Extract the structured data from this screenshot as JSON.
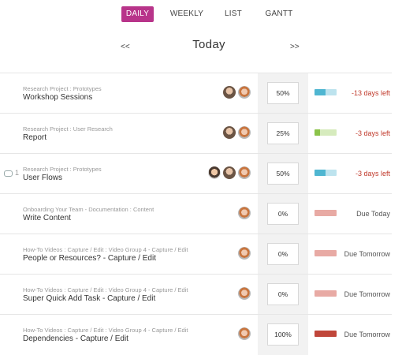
{
  "tabs": [
    {
      "label": "DAILY",
      "active": true
    },
    {
      "label": "WEEKLY",
      "active": false
    },
    {
      "label": "LIST",
      "active": false
    },
    {
      "label": "GANTT",
      "active": false
    }
  ],
  "nav": {
    "prev": "<<",
    "title": "Today",
    "next": ">>"
  },
  "colors": {
    "accent": "#b8348a",
    "overdue": "#c0392b",
    "neutral": "#555555"
  },
  "rows": [
    {
      "comment_count": "",
      "project": "Research Project : Prototypes",
      "task": "Workshop Sessions",
      "avatars": [
        "a",
        "b"
      ],
      "percent": "50%",
      "progress": 0.5,
      "bar_fill": "#4fb6d1",
      "bar_track": "#bde3ee",
      "status": "-13 days left",
      "status_color": "#c0392b"
    },
    {
      "comment_count": "",
      "project": "Research Project : User Research",
      "task": "Report",
      "avatars": [
        "a",
        "b"
      ],
      "percent": "25%",
      "progress": 0.25,
      "bar_fill": "#8bc34a",
      "bar_track": "#d6ebbd",
      "status": "-3 days left",
      "status_color": "#c0392b"
    },
    {
      "comment_count": "1",
      "project": "Research Project : Prototypes",
      "task": "User Flows",
      "avatars": [
        "c",
        "a",
        "b"
      ],
      "percent": "50%",
      "progress": 0.5,
      "bar_fill": "#4fb6d1",
      "bar_track": "#bde3ee",
      "status": "-3 days left",
      "status_color": "#c0392b"
    },
    {
      "comment_count": "",
      "project": "Onboarding Your Team - Documentation : Content",
      "task": "Write Content",
      "avatars": [
        "b"
      ],
      "percent": "0%",
      "progress": 0.0,
      "bar_fill": "#e8aaa4",
      "bar_track": "#e8aaa4",
      "status": "Due Today",
      "status_color": "#555555"
    },
    {
      "comment_count": "",
      "project": "How-To Videos : Capture / Edit : Video Group 4 - Capture / Edit",
      "task": "People or Resources? - Capture / Edit",
      "avatars": [
        "b"
      ],
      "percent": "0%",
      "progress": 0.0,
      "bar_fill": "#e8aaa4",
      "bar_track": "#e8aaa4",
      "status": "Due Tomorrow",
      "status_color": "#555555"
    },
    {
      "comment_count": "",
      "project": "How-To Videos : Capture / Edit : Video Group 4 - Capture / Edit",
      "task": "Super Quick Add Task - Capture / Edit",
      "avatars": [
        "b"
      ],
      "percent": "0%",
      "progress": 0.0,
      "bar_fill": "#e8aaa4",
      "bar_track": "#e8aaa4",
      "status": "Due Tomorrow",
      "status_color": "#555555"
    },
    {
      "comment_count": "",
      "project": "How-To Videos : Capture / Edit : Video Group 4 - Capture / Edit",
      "task": "Dependencies - Capture / Edit",
      "avatars": [
        "b"
      ],
      "percent": "100%",
      "progress": 1.0,
      "bar_fill": "#c0463a",
      "bar_track": "#c0463a",
      "status": "Due Tomorrow",
      "status_color": "#555555"
    }
  ]
}
